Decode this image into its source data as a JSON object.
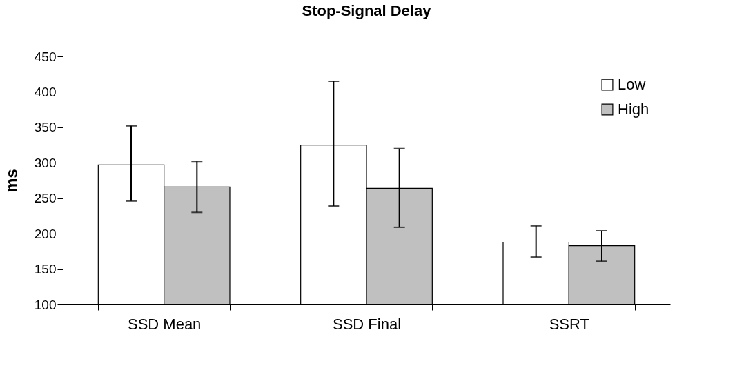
{
  "chart_data": {
    "type": "bar",
    "title": "Stop-Signal Delay",
    "ylabel": "ms",
    "categories": [
      "SSD Mean",
      "SSD Final",
      "SSRT"
    ],
    "series": [
      {
        "name": "Low",
        "color": "#ffffff",
        "values": [
          297,
          325,
          188
        ],
        "errors": [
          [
            246,
            352
          ],
          [
            239,
            415
          ],
          [
            167,
            211
          ]
        ]
      },
      {
        "name": "High",
        "color": "#c0c0c0",
        "values": [
          266,
          264,
          183
        ],
        "errors": [
          [
            230,
            302
          ],
          [
            209,
            320
          ],
          [
            161,
            204
          ]
        ]
      }
    ],
    "ylim": [
      100,
      450
    ],
    "yticks": [
      100,
      150,
      200,
      250,
      300,
      350,
      400,
      450
    ],
    "grid": false,
    "legend": "top right"
  }
}
